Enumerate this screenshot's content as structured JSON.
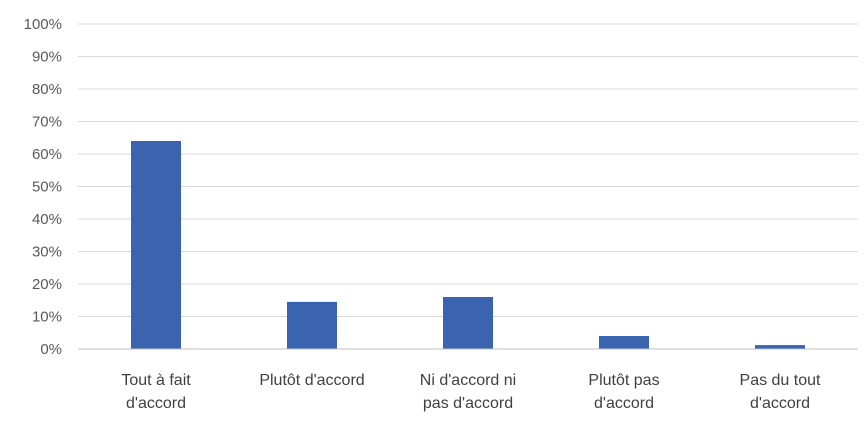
{
  "chart_data": {
    "type": "bar",
    "categories": [
      [
        "Tout à fait",
        "d'accord"
      ],
      [
        "Plutôt d'accord"
      ],
      [
        "Ni d'accord ni",
        "pas d'accord"
      ],
      [
        "Plutôt pas",
        "d'accord"
      ],
      [
        "Pas du tout",
        "d'accord"
      ]
    ],
    "values": [
      64,
      14.5,
      16,
      4,
      1.2
    ],
    "ylim": [
      0,
      100
    ],
    "yticks": [
      "0%",
      "10%",
      "20%",
      "30%",
      "40%",
      "50%",
      "60%",
      "70%",
      "80%",
      "90%",
      "100%"
    ],
    "grid": true,
    "colors": {
      "bar": "#3a64b0",
      "grid": "#d9d9d9",
      "axis": "#bfbfbf"
    }
  }
}
